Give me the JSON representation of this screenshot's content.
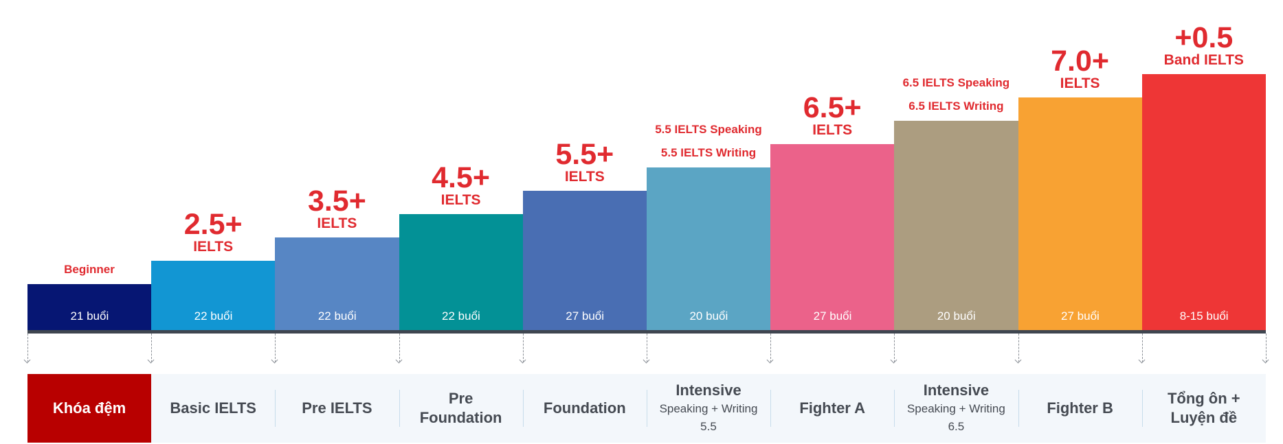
{
  "chart_data": {
    "type": "bar",
    "title": "",
    "xlabel": "",
    "ylabel": "",
    "grid": false,
    "legend": "none",
    "categories": [
      "Khóa đệm",
      "Basic IELTS",
      "Pre IELTS",
      "Pre Foundation",
      "Foundation",
      "Intensive Speaking + Writing 5.5",
      "Fighter A",
      "Intensive Speaking + Writing 6.5",
      "Fighter B",
      "Tổng ôn + Luyện đề"
    ],
    "values": [
      1,
      2,
      3,
      4,
      5,
      6,
      7,
      8,
      9,
      10
    ],
    "bars": [
      {
        "sessions": "21 buổi",
        "color": "#061673",
        "target": {
          "line1": "Beginner"
        },
        "style": "small"
      },
      {
        "sessions": "22 buổi",
        "color": "#1296d3",
        "target": {
          "big": "2.5+",
          "line1": "IELTS"
        },
        "style": "big"
      },
      {
        "sessions": "22 buổi",
        "color": "#5786c4",
        "target": {
          "big": "3.5+",
          "line1": "IELTS"
        },
        "style": "big"
      },
      {
        "sessions": "22 buổi",
        "color": "#039196",
        "target": {
          "big": "4.5+",
          "line1": "IELTS"
        },
        "style": "big"
      },
      {
        "sessions": "27 buổi",
        "color": "#496eb3",
        "target": {
          "big": "5.5+",
          "line1": "IELTS"
        },
        "style": "big"
      },
      {
        "sessions": "20 buổi",
        "color": "#5ba5c4",
        "target": {
          "line1": "5.5 IELTS Speaking",
          "line2": "5.5 IELTS Writing"
        },
        "style": "small"
      },
      {
        "sessions": "27 buổi",
        "color": "#eb628a",
        "target": {
          "big": "6.5+",
          "line1": "IELTS"
        },
        "style": "big"
      },
      {
        "sessions": "20 buổi",
        "color": "#ac9d80",
        "target": {
          "line1": "6.5 IELTS Speaking",
          "line2": "6.5 IELTS Writing"
        },
        "style": "small"
      },
      {
        "sessions": "27 buổi",
        "color": "#f8a233",
        "target": {
          "big": "7.0+",
          "line1": "IELTS"
        },
        "style": "big"
      },
      {
        "sessions": "8-15 buổi",
        "color": "#ee3636",
        "target": {
          "big": "+0.5",
          "line1": "Band IELTS"
        },
        "style": "big"
      }
    ],
    "courses": [
      {
        "title": "Khóa đệm"
      },
      {
        "title": "Basic IELTS"
      },
      {
        "title": "Pre IELTS"
      },
      {
        "title": "Pre\nFoundation"
      },
      {
        "title": "Foundation"
      },
      {
        "title": "Intensive",
        "sub": "Speaking + Writing\n5.5"
      },
      {
        "title": "Fighter A"
      },
      {
        "title": "Intensive",
        "sub": "Speaking + Writing\n6.5"
      },
      {
        "title": "Fighter B"
      },
      {
        "title": "Tổng ôn +\nLuyện đề"
      }
    ]
  },
  "colors": {
    "label_red": "#e02a2f",
    "highlight_course": "#b80000",
    "baseline": "#3f4650"
  }
}
